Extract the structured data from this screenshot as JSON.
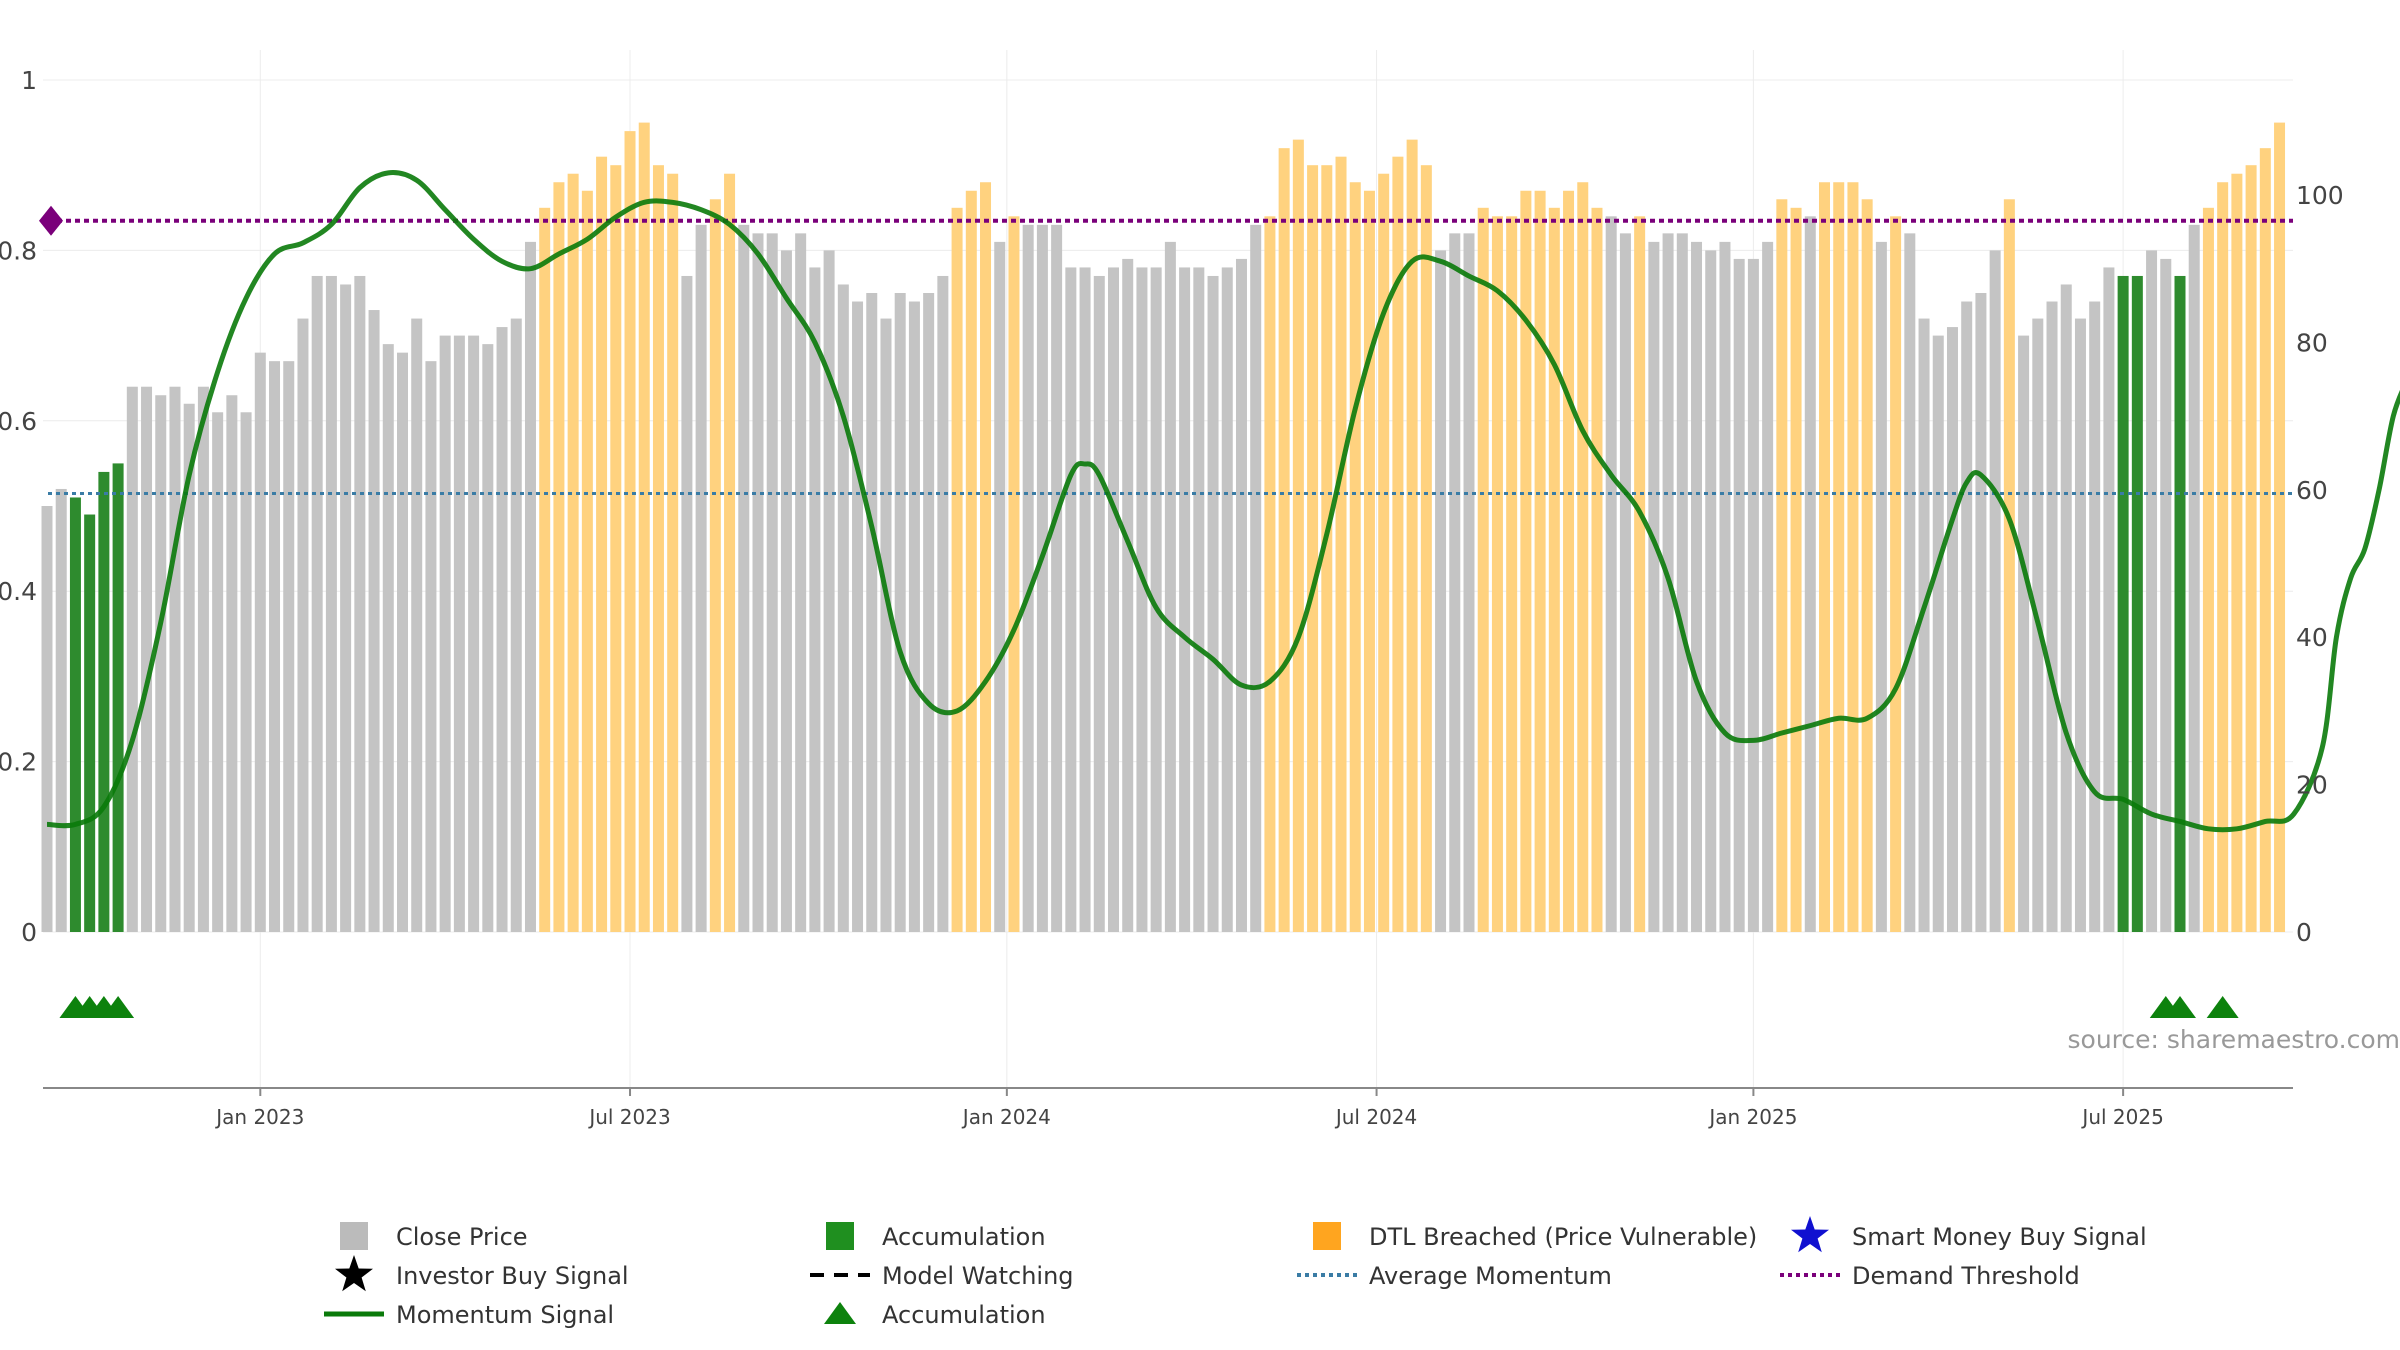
{
  "source_label": "source: sharemaestro.com",
  "colors": {
    "close": "#c4c4c4",
    "accumulation": "#2e8b2e",
    "dtl": "#ffd27f",
    "momentum": "#0a7a0a",
    "average": "#3a7ca5",
    "demand": "#7a007a",
    "marker": "#0d820d"
  },
  "legend": [
    {
      "label": "Close Price",
      "icon": "square",
      "color": "#bbbbbb"
    },
    {
      "label": "Accumulation",
      "icon": "square",
      "color": "#1f8f1f"
    },
    {
      "label": "DTL Breached (Price Vulnerable)",
      "icon": "square",
      "color": "#ffa51f"
    },
    {
      "label": "Smart Money Buy Signal",
      "icon": "star",
      "color": "#1010d0"
    },
    {
      "label": "Investor Buy Signal",
      "icon": "star",
      "color": "#000000"
    },
    {
      "label": "Model Watching",
      "icon": "dash-line",
      "color": "#000000"
    },
    {
      "label": "Average Momentum",
      "icon": "dot-line",
      "color": "#3a7ca5"
    },
    {
      "label": "Demand Threshold",
      "icon": "dot-line",
      "color": "#7a007a"
    },
    {
      "label": "Momentum Signal",
      "icon": "solid-line",
      "color": "#0a7a0a"
    },
    {
      "label": "Accumulation",
      "icon": "triangle",
      "color": "#0d820d"
    }
  ],
  "chart_data": {
    "type": "bar",
    "x_ticks": [
      "Jan 2023",
      "Jul 2023",
      "Jan 2024",
      "Jul 2024",
      "Jan 2025",
      "Jul 2025"
    ],
    "x_tick_weeks": [
      15,
      41,
      67.5,
      93.5,
      120,
      146
    ],
    "y_left_ticks": [
      "0",
      "0.2",
      "0.4",
      "0.6",
      "0.8",
      "1"
    ],
    "y_left_values": [
      0,
      0.2,
      0.4,
      0.6,
      0.8,
      1
    ],
    "y_left_range": [
      0,
      1
    ],
    "y_right_ticks": [
      "0",
      "20",
      "40",
      "60",
      "80",
      "100"
    ],
    "y_right_values": [
      0,
      20,
      40,
      60,
      80,
      100
    ],
    "y_right_range": [
      0,
      115.6
    ],
    "average_momentum": 59.5,
    "demand_threshold": 96.5,
    "bar_values": [
      0.5,
      0.52,
      0.51,
      0.49,
      0.54,
      0.55,
      0.64,
      0.64,
      0.63,
      0.64,
      0.62,
      0.64,
      0.61,
      0.63,
      0.61,
      0.68,
      0.67,
      0.67,
      0.72,
      0.77,
      0.77,
      0.76,
      0.77,
      0.73,
      0.69,
      0.68,
      0.72,
      0.67,
      0.7,
      0.7,
      0.7,
      0.69,
      0.71,
      0.72,
      0.81,
      0.85,
      0.88,
      0.89,
      0.87,
      0.91,
      0.9,
      0.94,
      0.95,
      0.9,
      0.89,
      0.77,
      0.83,
      0.86,
      0.89,
      0.83,
      0.82,
      0.82,
      0.8,
      0.82,
      0.78,
      0.8,
      0.76,
      0.74,
      0.75,
      0.72,
      0.75,
      0.74,
      0.75,
      0.77,
      0.85,
      0.87,
      0.88,
      0.81,
      0.84,
      0.83,
      0.83,
      0.83,
      0.78,
      0.78,
      0.77,
      0.78,
      0.79,
      0.78,
      0.78,
      0.81,
      0.78,
      0.78,
      0.77,
      0.78,
      0.79,
      0.83,
      0.84,
      0.92,
      0.93,
      0.9,
      0.9,
      0.91,
      0.88,
      0.87,
      0.89,
      0.91,
      0.93,
      0.9,
      0.8,
      0.82,
      0.82,
      0.85,
      0.84,
      0.84,
      0.87,
      0.87,
      0.85,
      0.87,
      0.88,
      0.85,
      0.84,
      0.82,
      0.84,
      0.81,
      0.82,
      0.82,
      0.81,
      0.8,
      0.81,
      0.79,
      0.79,
      0.81,
      0.86,
      0.85,
      0.84,
      0.88,
      0.88,
      0.88,
      0.86,
      0.81,
      0.84,
      0.82,
      0.72,
      0.7,
      0.71,
      0.74,
      0.75,
      0.8,
      0.86,
      0.7,
      0.72,
      0.74,
      0.76,
      0.72,
      0.74,
      0.78,
      0.77,
      0.77,
      0.8,
      0.79,
      0.77,
      0.83,
      0.85,
      0.88,
      0.89,
      0.9,
      0.92,
      0.95
    ],
    "bar_types": [
      "close",
      "close",
      "accumulation",
      "accumulation",
      "accumulation",
      "accumulation",
      "close",
      "close",
      "close",
      "close",
      "close",
      "close",
      "close",
      "close",
      "close",
      "close",
      "close",
      "close",
      "close",
      "close",
      "close",
      "close",
      "close",
      "close",
      "close",
      "close",
      "close",
      "close",
      "close",
      "close",
      "close",
      "close",
      "close",
      "close",
      "close",
      "dtl",
      "dtl",
      "dtl",
      "dtl",
      "dtl",
      "dtl",
      "dtl",
      "dtl",
      "dtl",
      "dtl",
      "close",
      "close",
      "dtl",
      "dtl",
      "close",
      "close",
      "close",
      "close",
      "close",
      "close",
      "close",
      "close",
      "close",
      "close",
      "close",
      "close",
      "close",
      "close",
      "close",
      "dtl",
      "dtl",
      "dtl",
      "close",
      "dtl",
      "close",
      "close",
      "close",
      "close",
      "close",
      "close",
      "close",
      "close",
      "close",
      "close",
      "close",
      "close",
      "close",
      "close",
      "close",
      "close",
      "close",
      "dtl",
      "dtl",
      "dtl",
      "dtl",
      "dtl",
      "dtl",
      "dtl",
      "dtl",
      "dtl",
      "dtl",
      "dtl",
      "dtl",
      "close",
      "close",
      "close",
      "dtl",
      "dtl",
      "dtl",
      "dtl",
      "dtl",
      "dtl",
      "dtl",
      "dtl",
      "dtl",
      "close",
      "close",
      "dtl",
      "close",
      "close",
      "close",
      "close",
      "close",
      "close",
      "close",
      "close",
      "close",
      "dtl",
      "dtl",
      "close",
      "dtl",
      "dtl",
      "dtl",
      "dtl",
      "close",
      "dtl",
      "close",
      "close",
      "close",
      "close",
      "close",
      "close",
      "close",
      "dtl",
      "close",
      "close",
      "close",
      "close",
      "close",
      "close",
      "close",
      "accumulation",
      "accumulation",
      "close",
      "close",
      "accumulation",
      "close",
      "dtl",
      "dtl",
      "dtl",
      "dtl",
      "dtl",
      "dtl"
    ],
    "momentum": [
      [
        0,
        14.6
      ],
      [
        2,
        14.6
      ],
      [
        4,
        17
      ],
      [
        6,
        26
      ],
      [
        8,
        42
      ],
      [
        10,
        62
      ],
      [
        12,
        76
      ],
      [
        14,
        86
      ],
      [
        16,
        92
      ],
      [
        18,
        93.5
      ],
      [
        20,
        96
      ],
      [
        22,
        101
      ],
      [
        24,
        103
      ],
      [
        26,
        102
      ],
      [
        28,
        98
      ],
      [
        30,
        94
      ],
      [
        32,
        91
      ],
      [
        34,
        90
      ],
      [
        36,
        92
      ],
      [
        38,
        94
      ],
      [
        40,
        97
      ],
      [
        42,
        99
      ],
      [
        44,
        99
      ],
      [
        46,
        98
      ],
      [
        48,
        96
      ],
      [
        50,
        92
      ],
      [
        52,
        86
      ],
      [
        54,
        80
      ],
      [
        56,
        70
      ],
      [
        58,
        55
      ],
      [
        60,
        38
      ],
      [
        62,
        31
      ],
      [
        64,
        30
      ],
      [
        66,
        34
      ],
      [
        68,
        41
      ],
      [
        70,
        51
      ],
      [
        72,
        62
      ],
      [
        73,
        63.5
      ],
      [
        74,
        62
      ],
      [
        76,
        53
      ],
      [
        78,
        44
      ],
      [
        80,
        40
      ],
      [
        82,
        37
      ],
      [
        84,
        33.5
      ],
      [
        86,
        34
      ],
      [
        88,
        40
      ],
      [
        90,
        54
      ],
      [
        92,
        71
      ],
      [
        94,
        84
      ],
      [
        96,
        91
      ],
      [
        98,
        91
      ],
      [
        100,
        89
      ],
      [
        102,
        87
      ],
      [
        104,
        83
      ],
      [
        106,
        77
      ],
      [
        108,
        68
      ],
      [
        110,
        62
      ],
      [
        112,
        57
      ],
      [
        114,
        48
      ],
      [
        116,
        34
      ],
      [
        118,
        27
      ],
      [
        120,
        26
      ],
      [
        122,
        27
      ],
      [
        124,
        28
      ],
      [
        126,
        29
      ],
      [
        128,
        29
      ],
      [
        130,
        33
      ],
      [
        132,
        44
      ],
      [
        134,
        56
      ],
      [
        135,
        61
      ],
      [
        136,
        62
      ],
      [
        138,
        56
      ],
      [
        140,
        42
      ],
      [
        142,
        27
      ],
      [
        144,
        19
      ],
      [
        146,
        18
      ],
      [
        148,
        16
      ],
      [
        150,
        15
      ],
      [
        152,
        14
      ],
      [
        154,
        14
      ],
      [
        156,
        15
      ],
      [
        158,
        16
      ],
      [
        160,
        25
      ],
      [
        161,
        40
      ],
      [
        162,
        48
      ],
      [
        163,
        52
      ],
      [
        164,
        60
      ],
      [
        165,
        70
      ],
      [
        166,
        75
      ]
    ],
    "accumulation_marker_weeks": [
      2,
      3,
      4,
      5,
      149,
      150,
      153
    ]
  }
}
